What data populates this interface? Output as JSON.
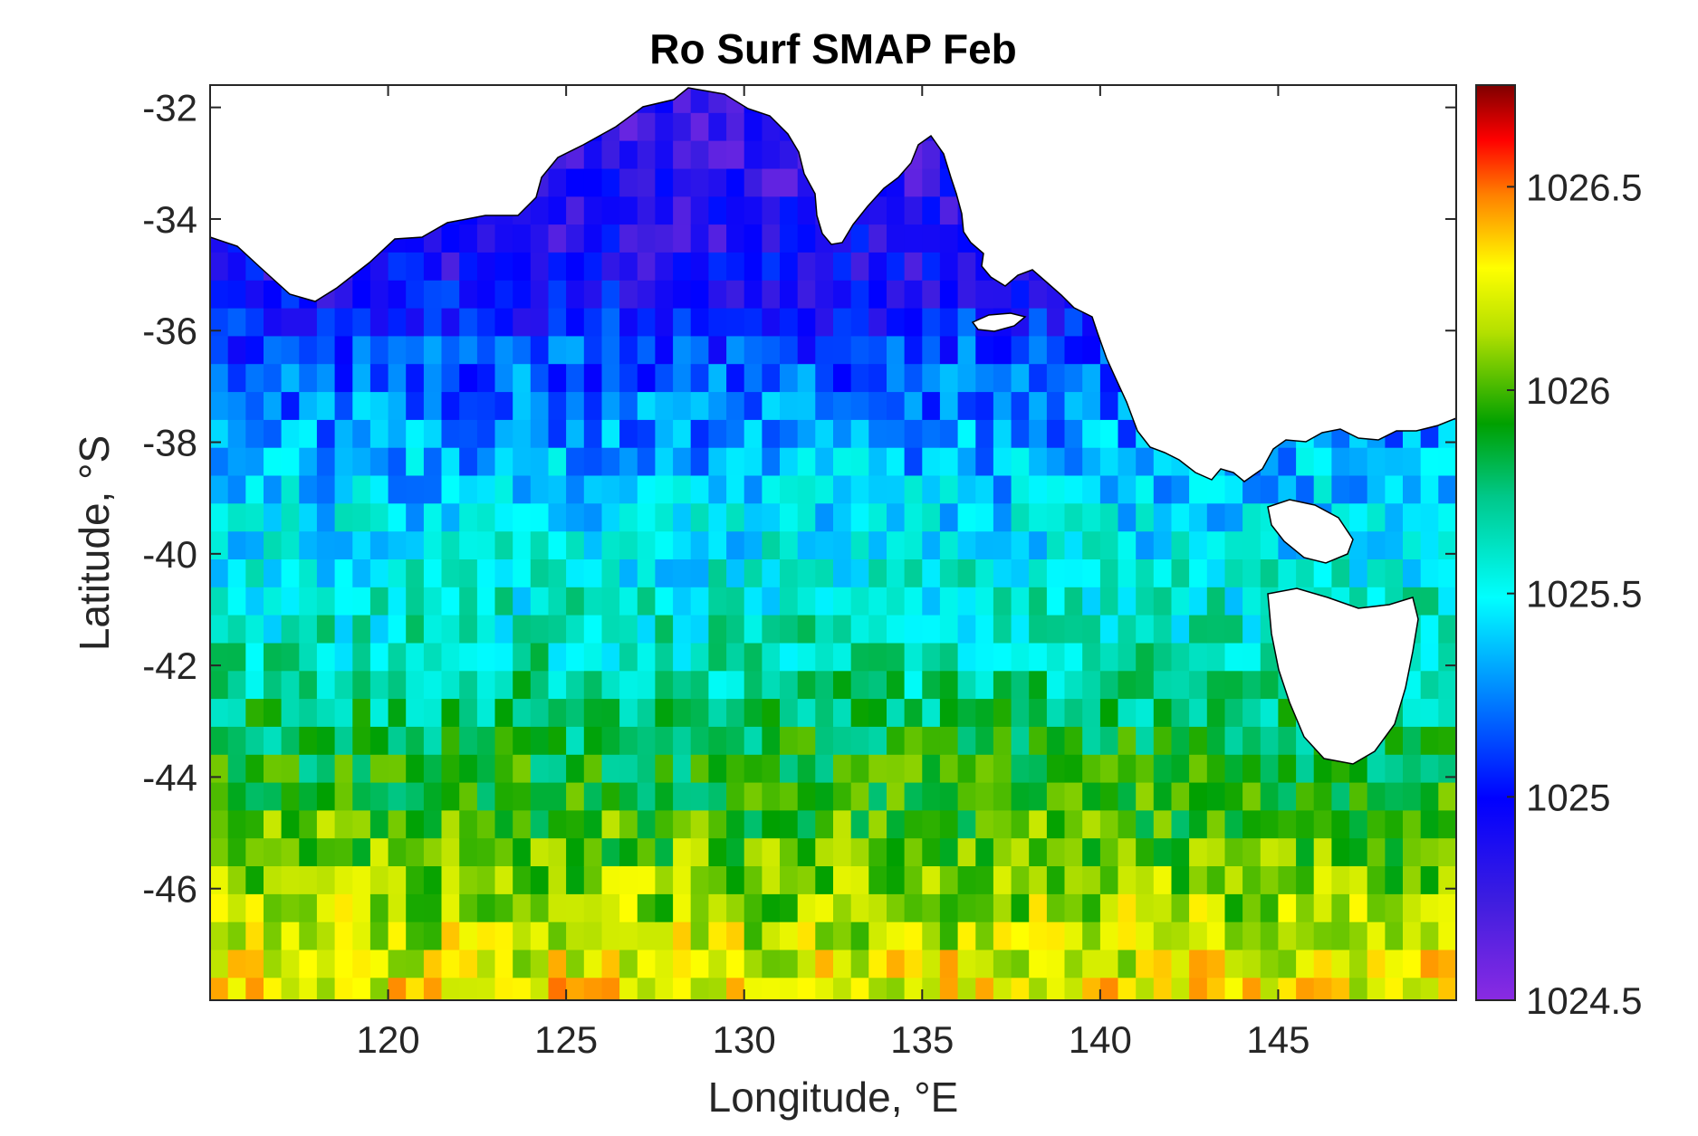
{
  "figure": {
    "title": "Ro Surf SMAP Feb",
    "xlabel": "Longitude, °E",
    "ylabel": "Latitude, °S"
  },
  "chart_data": {
    "type": "heatmap",
    "title": "Ro Surf SMAP Feb",
    "xlabel": "Longitude, °E",
    "ylabel": "Latitude, °S",
    "xlim": [
      115,
      150
    ],
    "ylim": [
      -48,
      -31.6
    ],
    "xticks": [
      120,
      125,
      130,
      135,
      140,
      145
    ],
    "xtick_labels": [
      "120",
      "125",
      "130",
      "135",
      "140",
      "145"
    ],
    "yticks": [
      -32,
      -34,
      -36,
      -38,
      -40,
      -42,
      -44,
      -46
    ],
    "ytick_labels": [
      "-32",
      "-34",
      "-36",
      "-38",
      "-40",
      "-42",
      "-44",
      "-46"
    ],
    "colorbar": {
      "colormap": "jet-like (purple-blue-cyan-green-yellow-red-darkred)",
      "clim": [
        1024.5,
        1026.75
      ],
      "ticks": [
        1024.5,
        1025,
        1025.5,
        1026,
        1026.5
      ],
      "tick_labels": [
        "1024.5",
        "1025",
        "1025.5",
        "1026",
        "1026.5"
      ]
    },
    "grid_resolution_deg": 0.5,
    "latitude_profile": [
      {
        "lat": -32.5,
        "value": 1024.8
      },
      {
        "lat": -34,
        "value": 1024.85
      },
      {
        "lat": -35.5,
        "value": 1024.95
      },
      {
        "lat": -36.5,
        "value": 1025.15
      },
      {
        "lat": -38,
        "value": 1025.3
      },
      {
        "lat": -40,
        "value": 1025.5
      },
      {
        "lat": -42,
        "value": 1025.65
      },
      {
        "lat": -43.5,
        "value": 1025.85
      },
      {
        "lat": -45,
        "value": 1026.0
      },
      {
        "lat": -46.5,
        "value": 1026.15
      },
      {
        "lat": -48,
        "value": 1026.3
      }
    ],
    "land_mask": "white (Australian mainland coast and Tasmania)",
    "grid": false
  }
}
